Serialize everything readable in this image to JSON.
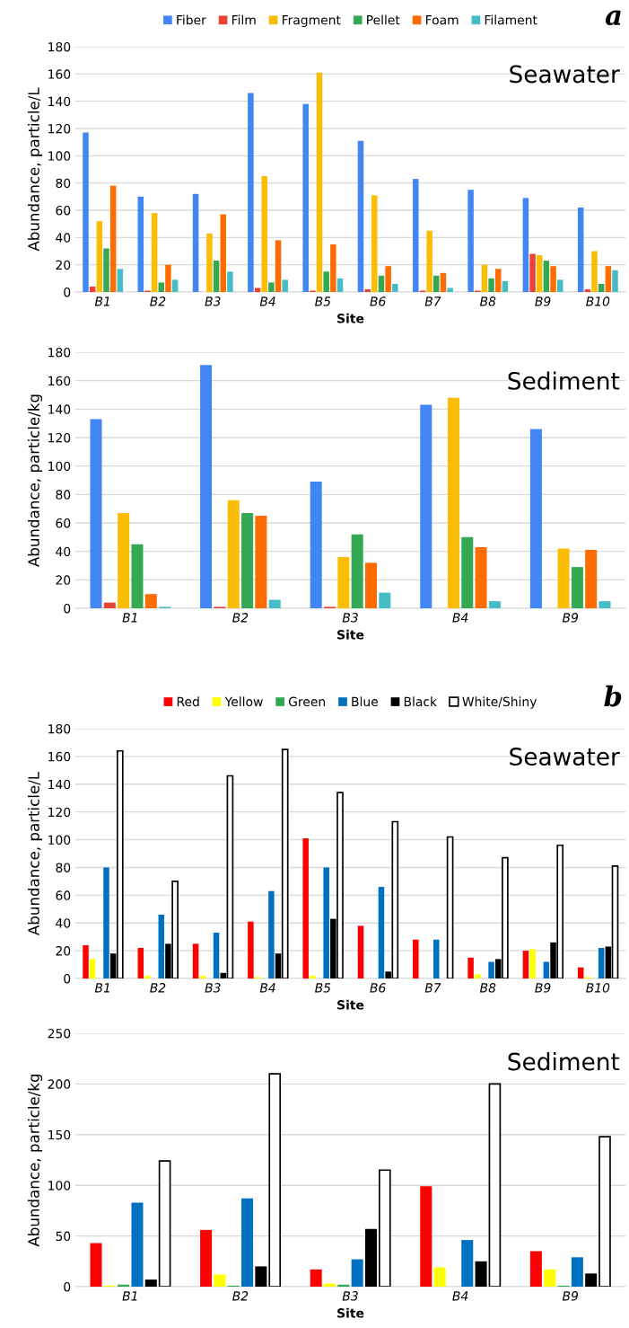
{
  "chart_data": [
    {
      "type": "bar",
      "categories": [
        "B1",
        "B2",
        "B3",
        "B4",
        "B5",
        "B6",
        "B7",
        "B8",
        "B9",
        "B10"
      ],
      "xlabel": "Site",
      "ylabel": "Abundance, particle/L",
      "ylim": [
        0,
        180
      ],
      "yticks": [
        0,
        20,
        40,
        60,
        80,
        100,
        120,
        140,
        160,
        180
      ],
      "grid": "y",
      "legend": "top",
      "annotations": [
        "Seawater",
        "a"
      ],
      "series": [
        {
          "name": "Fiber",
          "color": "#4285f4",
          "values": [
            117,
            70,
            72,
            146,
            138,
            111,
            83,
            75,
            69,
            62
          ]
        },
        {
          "name": "Film",
          "color": "#ea4335",
          "values": [
            4,
            1,
            0,
            3,
            1,
            2,
            1,
            1,
            28,
            2
          ]
        },
        {
          "name": "Fragment",
          "color": "#fbbc04",
          "values": [
            52,
            58,
            43,
            85,
            161,
            71,
            45,
            20,
            27,
            30
          ]
        },
        {
          "name": "Pellet",
          "color": "#34a853",
          "values": [
            32,
            7,
            23,
            7,
            15,
            12,
            12,
            10,
            23,
            6
          ]
        },
        {
          "name": "Foam",
          "color": "#ff6d01",
          "values": [
            78,
            20,
            57,
            38,
            35,
            19,
            14,
            17,
            19,
            19
          ]
        },
        {
          "name": "Filament",
          "color": "#46bdc6",
          "values": [
            17,
            9,
            15,
            9,
            10,
            6,
            3,
            8,
            9,
            16
          ]
        }
      ]
    },
    {
      "type": "bar",
      "categories": [
        "B1",
        "B2",
        "B3",
        "B4",
        "B9"
      ],
      "xlabel": "Site",
      "ylabel": "Abundance, particle/kg",
      "ylim": [
        0,
        180
      ],
      "yticks": [
        0,
        20,
        40,
        60,
        80,
        100,
        120,
        140,
        160,
        180
      ],
      "grid": "y",
      "annotations": [
        "Sediment"
      ],
      "series": [
        {
          "color": "#4285f4",
          "values": [
            133,
            171,
            89,
            143,
            126
          ]
        },
        {
          "color": "#ea4335",
          "values": [
            4,
            1,
            1,
            0,
            0
          ]
        },
        {
          "color": "#fbbc04",
          "values": [
            67,
            76,
            36,
            148,
            42
          ]
        },
        {
          "color": "#34a853",
          "values": [
            45,
            67,
            52,
            50,
            29
          ]
        },
        {
          "color": "#ff6d01",
          "values": [
            10,
            65,
            32,
            43,
            41
          ]
        },
        {
          "color": "#46bdc6",
          "values": [
            1,
            6,
            11,
            5,
            5
          ]
        }
      ]
    },
    {
      "type": "bar",
      "categories": [
        "B1",
        "B2",
        "B3",
        "B4",
        "B5",
        "B6",
        "B7",
        "B8",
        "B9",
        "B10"
      ],
      "xlabel": "Site",
      "ylabel": "Abundance, particle/L",
      "ylim": [
        0,
        180
      ],
      "yticks": [
        0,
        20,
        40,
        60,
        80,
        100,
        120,
        140,
        160,
        180
      ],
      "grid": "y",
      "legend": "top",
      "annotations": [
        "Seawater",
        "b"
      ],
      "series": [
        {
          "name": "Red",
          "color": "#ff0000",
          "values": [
            24,
            22,
            25,
            41,
            101,
            38,
            28,
            15,
            20,
            8
          ]
        },
        {
          "name": "Yellow",
          "color": "#ffff00",
          "values": [
            14,
            2,
            2,
            1,
            2,
            0,
            0,
            3,
            21,
            1
          ]
        },
        {
          "name": "Green",
          "color": "#33a853",
          "values": [
            0,
            0,
            0,
            0,
            0,
            0,
            0,
            0,
            0,
            0
          ]
        },
        {
          "name": "Blue",
          "color": "#0070c0",
          "values": [
            80,
            46,
            33,
            63,
            80,
            66,
            28,
            12,
            12,
            22
          ]
        },
        {
          "name": "Black",
          "color": "#000000",
          "values": [
            18,
            25,
            4,
            18,
            43,
            5,
            0,
            14,
            26,
            23
          ]
        },
        {
          "name": "White/Shiny",
          "color": "#ffffff",
          "values": [
            164,
            70,
            146,
            165,
            134,
            113,
            102,
            87,
            96,
            81
          ]
        }
      ]
    },
    {
      "type": "bar",
      "categories": [
        "B1",
        "B2",
        "B3",
        "B4",
        "B9"
      ],
      "xlabel": "Site",
      "ylabel": "Abundance, particle/kg",
      "ylim": [
        0,
        250
      ],
      "yticks": [
        0,
        50,
        100,
        150,
        200,
        250
      ],
      "grid": "y",
      "annotations": [
        "Sediment"
      ],
      "series": [
        {
          "color": "#ff0000",
          "values": [
            43,
            56,
            17,
            99,
            35
          ]
        },
        {
          "color": "#ffff00",
          "values": [
            1,
            12,
            3,
            19,
            17
          ]
        },
        {
          "color": "#33a853",
          "values": [
            2,
            1,
            2,
            0,
            1
          ]
        },
        {
          "color": "#0070c0",
          "values": [
            83,
            87,
            27,
            46,
            29
          ]
        },
        {
          "color": "#000000",
          "values": [
            7,
            20,
            57,
            25,
            13
          ]
        },
        {
          "color": "#ffffff",
          "values": [
            124,
            210,
            115,
            200,
            148
          ]
        }
      ]
    }
  ]
}
